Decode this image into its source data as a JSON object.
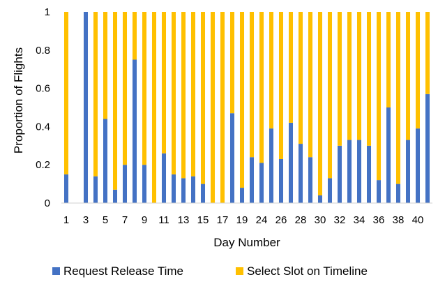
{
  "chart_data": {
    "type": "bar",
    "stacked": true,
    "xlabel": "Day Number",
    "ylabel": "Proportion of Flights",
    "ylim": [
      0,
      1
    ],
    "yticks": [
      "0",
      "0.2",
      "0.4",
      "0.6",
      "0.8",
      "1"
    ],
    "categories": [
      "1",
      "2",
      "3",
      "4",
      "5",
      "6",
      "7",
      "8",
      "9",
      "10",
      "11",
      "12",
      "13",
      "14",
      "15",
      "16",
      "17",
      "18",
      "19",
      "21",
      "24",
      "25",
      "26",
      "27",
      "28",
      "29",
      "30",
      "31",
      "32",
      "33",
      "34",
      "35",
      "36",
      "37",
      "38",
      "39",
      "40",
      "41"
    ],
    "visible_tick_labels": [
      "1",
      "3",
      "5",
      "7",
      "9",
      "11",
      "13",
      "15",
      "17",
      "19",
      "24",
      "26",
      "28",
      "30",
      "32",
      "34",
      "36",
      "38",
      "40"
    ],
    "legend_position": "bottom",
    "grid": false,
    "series": [
      {
        "name": "Request Release Time",
        "color": "#4472C4",
        "values": [
          0.15,
          0,
          1.0,
          0.14,
          0.44,
          0.07,
          0.2,
          0.75,
          0.2,
          0,
          0.26,
          0.15,
          0.13,
          0.14,
          0.1,
          0,
          0,
          0.47,
          0.08,
          0.24,
          0.21,
          0.39,
          0.23,
          0.42,
          0.31,
          0.24,
          0.04,
          0.13,
          0.3,
          0.33,
          0.33,
          0.3,
          0.12,
          0.5,
          0.1,
          0.33,
          0.39,
          0.57
        ]
      },
      {
        "name": "Select Slot on Timeline",
        "color": "#FFC000",
        "values": [
          0.85,
          0,
          0,
          0.86,
          0.56,
          0.93,
          0.8,
          0.25,
          0.8,
          1.0,
          0.74,
          0.85,
          0.87,
          0.86,
          0.9,
          1.0,
          1.0,
          0.53,
          0.92,
          0.76,
          0.79,
          0.61,
          0.77,
          0.58,
          0.69,
          0.76,
          0.96,
          0.87,
          0.7,
          0.67,
          0.67,
          0.7,
          0.88,
          0.5,
          0.9,
          0.67,
          0.61,
          0.43
        ]
      }
    ]
  }
}
